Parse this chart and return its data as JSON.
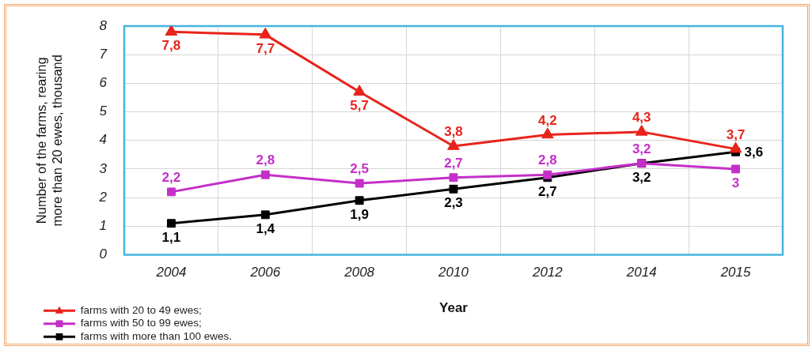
{
  "chart_data": {
    "type": "line",
    "xlabel": "Year",
    "ylabel": "Number of the farms, rearing more than 20 ewes, thousand",
    "categories": [
      "2004",
      "2006",
      "2008",
      "2010",
      "2012",
      "2014",
      "2015"
    ],
    "series": [
      {
        "name": "farms with 20 to 49 ewes;",
        "color": "#e8231b",
        "marker": "triangle",
        "values": [
          7.8,
          7.7,
          5.7,
          3.8,
          4.2,
          4.3,
          3.7
        ],
        "value_labels": [
          "7,8",
          "7,7",
          "5,7",
          "3,8",
          "4,2",
          "4,3",
          "3,7"
        ]
      },
      {
        "name": "farms with 50 to 99 ewes;",
        "color": "#c42fc8",
        "marker": "square",
        "values": [
          2.2,
          2.8,
          2.5,
          2.7,
          2.8,
          3.2,
          3
        ],
        "value_labels": [
          "2,2",
          "2,8",
          "2,5",
          "2,7",
          "2,8",
          "3,2",
          "3"
        ]
      },
      {
        "name": "farms with more than 100 ewes.",
        "color": "#000000",
        "marker": "square",
        "values": [
          1.1,
          1.4,
          1.9,
          2.3,
          2.7,
          3.2,
          3.6
        ],
        "value_labels": [
          "1,1",
          "1,4",
          "1,9",
          "2,3",
          "2,7",
          "3,2",
          "3,6"
        ]
      }
    ],
    "ylim": [
      0,
      8
    ],
    "yticks": [
      0,
      1,
      2,
      3,
      4,
      5,
      6,
      7,
      8
    ],
    "grid": true,
    "legend": "bottom left"
  }
}
